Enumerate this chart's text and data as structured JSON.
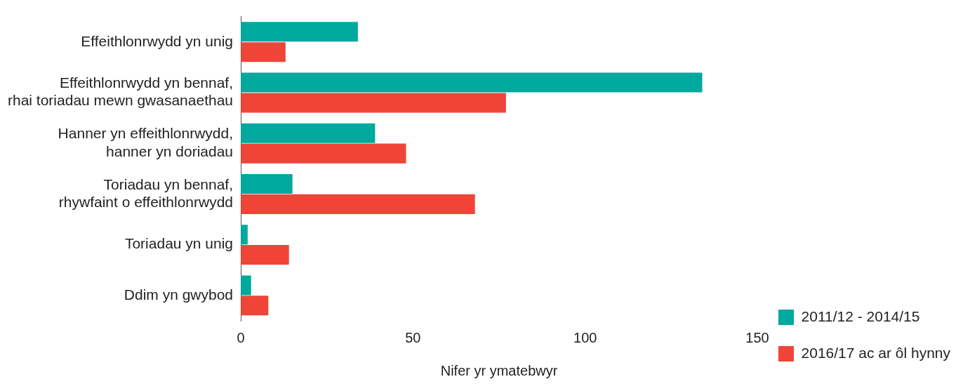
{
  "chart_data": {
    "type": "bar",
    "orientation": "horizontal",
    "xlabel": "Nifer yr ymatebwyr",
    "categories": [
      "Effeithlonrwydd yn unig",
      "Effeithlonrwydd yn bennaf, rhai toriadau mewn gwasanaethau",
      "Hanner yn effeithlonrwydd, hanner yn doriadau",
      "Toriadau yn bennaf, rhywfaint o effeithlonrwydd",
      "Toriadau yn unig",
      "Ddim yn gwybod"
    ],
    "series": [
      {
        "name": "2011/12 - 2014/15",
        "color": "#00a99d",
        "values": [
          34,
          134,
          39,
          15,
          2,
          3
        ]
      },
      {
        "name": "2016/17 ac ar ôl hynny",
        "color": "#f04438",
        "values": [
          13,
          77,
          48,
          68,
          14,
          8
        ]
      }
    ],
    "xlim": [
      0,
      150
    ],
    "xticks": [
      0,
      50,
      100,
      150
    ],
    "grid": false,
    "legend": "bottom right"
  }
}
